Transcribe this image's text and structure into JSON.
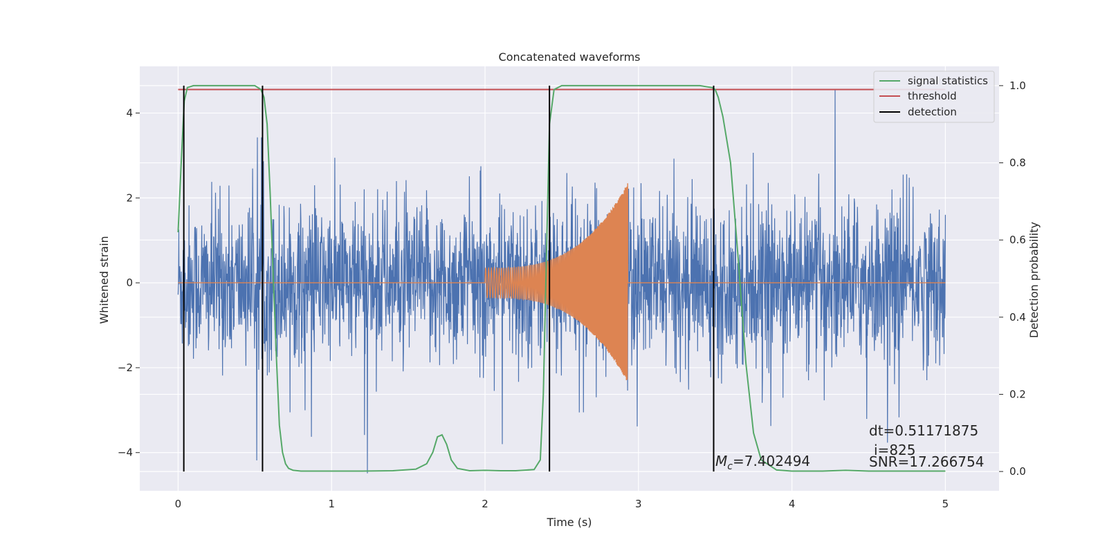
{
  "chart_data": {
    "type": "line",
    "title": "Concatenated waveforms",
    "xlabel": "Time (s)",
    "ylabel": "Whitened strain",
    "y2label": "Detection probability",
    "xlim": [
      -0.25,
      5.35
    ],
    "ylim": [
      -4.9,
      5.1
    ],
    "y2lim": [
      -0.05,
      1.05
    ],
    "xticks": [
      0,
      1,
      2,
      3,
      4,
      5
    ],
    "yticks": [
      -4,
      -2,
      0,
      2,
      4
    ],
    "y2ticks": [
      0.0,
      0.2,
      0.4,
      0.6,
      0.8,
      1.0
    ],
    "ytick_labels": [
      "−4",
      "−2",
      "0",
      "2",
      "4"
    ],
    "y2tick_labels": [
      "0.0",
      "0.2",
      "0.4",
      "0.6",
      "0.8",
      "1.0"
    ],
    "grid": true,
    "legend_position": "top-right",
    "colors": {
      "background": "#eaeaf2",
      "grid": "#ffffff",
      "noise": "#4c72b0",
      "template": "#dd8452",
      "signal_statistics": "#55a868",
      "threshold": "#c44e52",
      "detection": "#000000"
    },
    "series": [
      {
        "name": "signal statistics",
        "axis": "right",
        "x": [
          0,
          0.02,
          0.04,
          0.06,
          0.1,
          0.2,
          0.3,
          0.4,
          0.5,
          0.54,
          0.56,
          0.58,
          0.6,
          0.62,
          0.64,
          0.66,
          0.68,
          0.7,
          0.72,
          0.75,
          0.8,
          1.0,
          1.2,
          1.4,
          1.55,
          1.62,
          1.66,
          1.69,
          1.72,
          1.75,
          1.78,
          1.82,
          1.9,
          2.0,
          2.1,
          2.2,
          2.32,
          2.36,
          2.38,
          2.4,
          2.42,
          2.45,
          2.5,
          2.8,
          3.1,
          3.4,
          3.48,
          3.5,
          3.52,
          3.55,
          3.6,
          3.65,
          3.7,
          3.75,
          3.8,
          3.9,
          4.0,
          4.2,
          4.35,
          4.5,
          4.7,
          5.0
        ],
        "values": [
          0.62,
          0.8,
          0.96,
          0.995,
          1.0,
          1.0,
          1.0,
          1.0,
          1.0,
          0.99,
          0.97,
          0.9,
          0.72,
          0.5,
          0.3,
          0.12,
          0.05,
          0.02,
          0.008,
          0.003,
          0.001,
          0.001,
          0.001,
          0.002,
          0.006,
          0.02,
          0.05,
          0.09,
          0.095,
          0.07,
          0.03,
          0.008,
          0.002,
          0.003,
          0.002,
          0.002,
          0.005,
          0.03,
          0.2,
          0.55,
          0.9,
          0.99,
          1.0,
          1.0,
          1.0,
          1.0,
          0.995,
          0.99,
          0.97,
          0.92,
          0.8,
          0.55,
          0.28,
          0.1,
          0.03,
          0.004,
          0.001,
          0.001,
          0.003,
          0.001,
          0.001,
          0.001
        ]
      },
      {
        "name": "threshold",
        "axis": "right",
        "x": [
          0,
          5
        ],
        "values": [
          0.99,
          0.99
        ]
      },
      {
        "name": "detection",
        "axis": "right",
        "x": [
          0.037,
          0.55,
          2.42,
          3.49
        ],
        "y_range": [
          0.0,
          1.0
        ]
      }
    ],
    "noise_envelope": {
      "x_range": [
        0,
        5
      ],
      "std_left_axis": 0.9,
      "typical_peak": 3.0,
      "max_peak": 4.6
    },
    "chirp": {
      "x_range": [
        2.0,
        2.93
      ],
      "start_amplitude": 0.35,
      "end_amplitude": 2.35
    },
    "annotations": {
      "dt_text": "dt=0.51171875",
      "i_text": "i=825",
      "snr_text": "SNR=17.266754",
      "mc_symbol": "M",
      "mc_subscript": "c",
      "mc_value": "=7.402494"
    }
  }
}
